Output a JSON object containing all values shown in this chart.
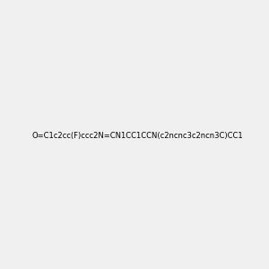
{
  "smiles": "O=C1c2cc(F)ccc2N=CN1CC1CCN(c2ncnc3c2ncn3C)CC1",
  "image_size": 300,
  "background_color": "#f0f0f0",
  "bond_color": "#000000",
  "atom_colors": {
    "N": "#0000ff",
    "O": "#ff0000",
    "F": "#ff00ff"
  }
}
